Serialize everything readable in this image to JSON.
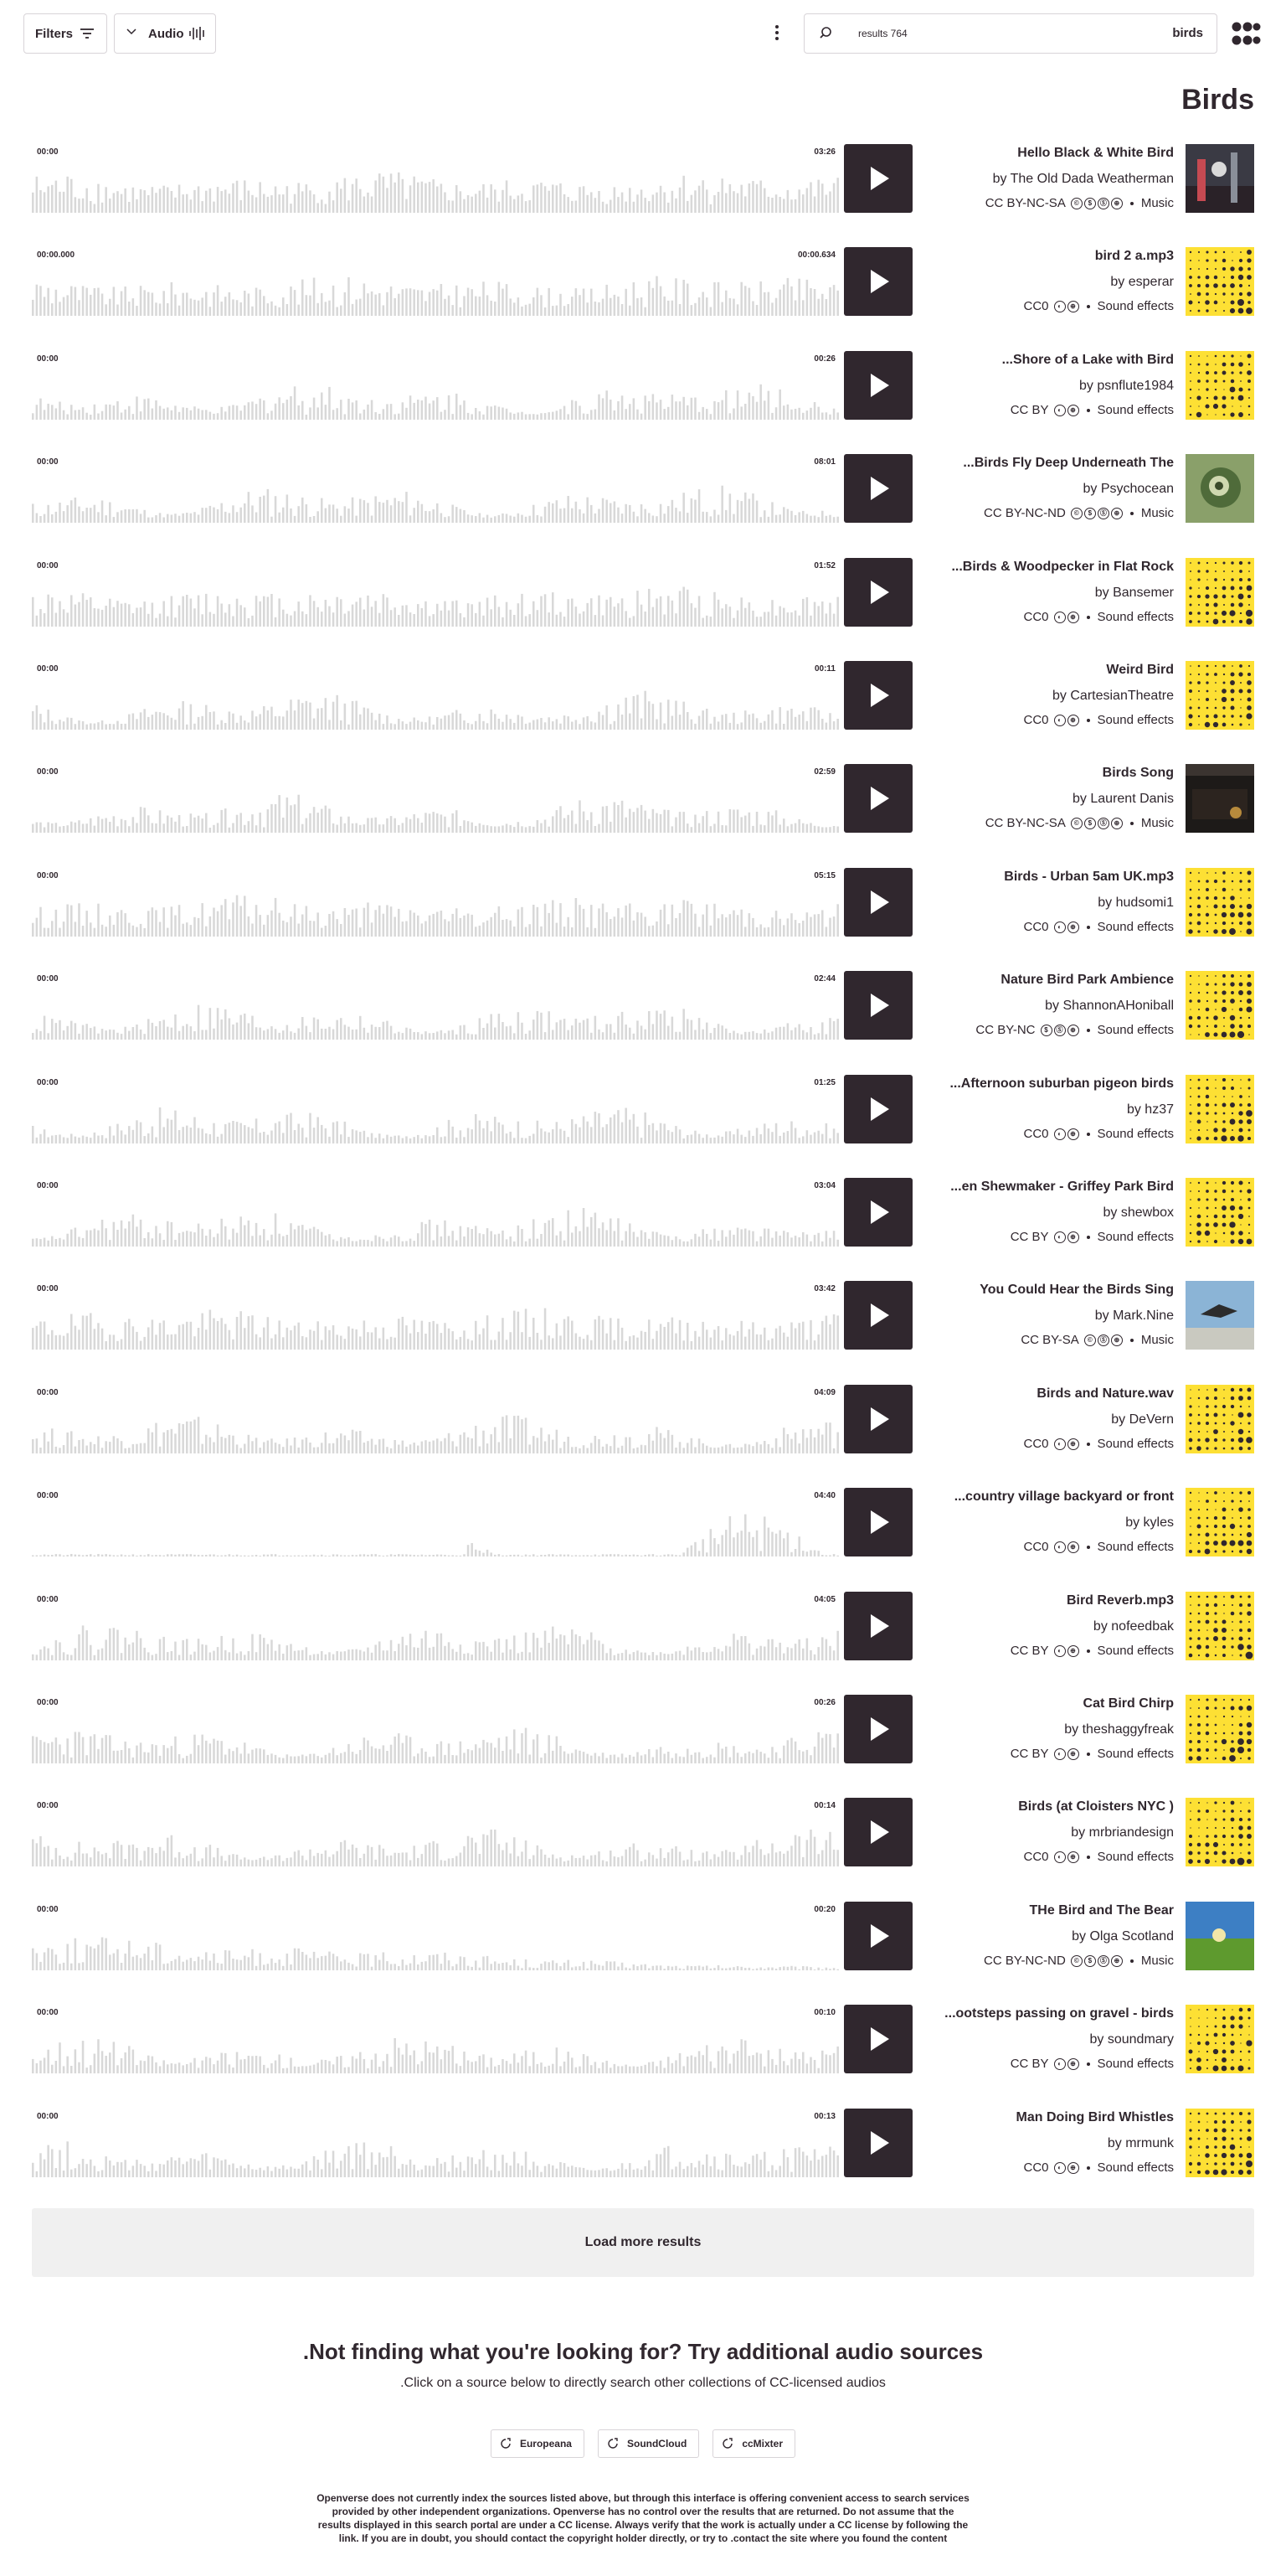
{
  "header": {
    "filters_label": "Filters",
    "media_type_label": "Audio",
    "search_count": "results 764",
    "search_query": "birds"
  },
  "page_title": "Birds",
  "results": [
    {
      "title": "Hello Black & White Bird",
      "creator": "by The Old Dada Weatherman",
      "license": "CC BY-NC-SA",
      "badges": [
        "©",
        "$",
        "Ⓢ",
        "⊕"
      ],
      "category": "Music",
      "start": "00:00",
      "end": "03:26",
      "thumb": "photo-dark-birds",
      "wave": "dense"
    },
    {
      "title": "bird 2 a.mp3",
      "creator": "by esperar",
      "license": "CC0",
      "badges": [
        "◐",
        "⊕"
      ],
      "category": "Sound effects",
      "start": "00:00.000",
      "end": "00:00.634",
      "thumb": "yellow-pattern",
      "wave": "dense"
    },
    {
      "title": "...Shore of a Lake with Bird",
      "creator": "by psnflute1984",
      "license": "CC BY",
      "badges": [
        "◐",
        "⊕"
      ],
      "category": "Sound effects",
      "start": "00:00",
      "end": "00:26",
      "thumb": "yellow-pattern",
      "wave": "medium"
    },
    {
      "title": "...Birds Fly Deep Underneath The",
      "creator": "by Psychocean",
      "license": "CC BY-NC-ND",
      "badges": [
        "©",
        "$",
        "Ⓢ",
        "⊕"
      ],
      "category": "Music",
      "start": "00:00",
      "end": "08:01",
      "thumb": "photo-green",
      "wave": "medium"
    },
    {
      "title": "...Birds & Woodpecker in Flat Rock",
      "creator": "by Bansemer",
      "license": "CC0",
      "badges": [
        "◐",
        "⊕"
      ],
      "category": "Sound effects",
      "start": "00:00",
      "end": "01:52",
      "thumb": "yellow-pattern",
      "wave": "dense"
    },
    {
      "title": "Weird Bird",
      "creator": "by CartesianTheatre",
      "license": "CC0",
      "badges": [
        "◐",
        "⊕"
      ],
      "category": "Sound effects",
      "start": "00:00",
      "end": "00:11",
      "thumb": "yellow-pattern",
      "wave": "medium"
    },
    {
      "title": "Birds Song",
      "creator": "by Laurent Danis",
      "license": "CC BY-NC-SA",
      "badges": [
        "©",
        "$",
        "Ⓢ",
        "⊕"
      ],
      "category": "Music",
      "start": "00:00",
      "end": "02:59",
      "thumb": "photo-dark-album",
      "wave": "medium"
    },
    {
      "title": "Birds - Urban 5am UK.mp3",
      "creator": "by hudsomi1",
      "license": "CC0",
      "badges": [
        "◐",
        "⊕"
      ],
      "category": "Sound effects",
      "start": "00:00",
      "end": "05:15",
      "thumb": "yellow-pattern",
      "wave": "dense"
    },
    {
      "title": "Nature Bird Park Ambience",
      "creator": "by ShannonAHoniball",
      "license": "CC BY-NC",
      "badges": [
        "$",
        "Ⓢ",
        "⊕"
      ],
      "category": "Sound effects",
      "start": "00:00",
      "end": "02:44",
      "thumb": "yellow-pattern",
      "wave": "medium"
    },
    {
      "title": "...Afternoon suburban pigeon birds",
      "creator": "by hz37",
      "license": "CC0",
      "badges": [
        "◐",
        "⊕"
      ],
      "category": "Sound effects",
      "start": "00:00",
      "end": "01:25",
      "thumb": "yellow-pattern",
      "wave": "medium"
    },
    {
      "title": "...en Shewmaker - Griffey Park Bird",
      "creator": "by shewbox",
      "license": "CC BY",
      "badges": [
        "◐",
        "⊕"
      ],
      "category": "Sound effects",
      "start": "00:00",
      "end": "03:04",
      "thumb": "yellow-pattern",
      "wave": "medium"
    },
    {
      "title": "You Could Hear the Birds Sing",
      "creator": "by Mark.Nine",
      "license": "CC BY-SA",
      "badges": [
        "©",
        "Ⓢ",
        "⊕"
      ],
      "category": "Music",
      "start": "00:00",
      "end": "03:42",
      "thumb": "photo-sky",
      "wave": "dense"
    },
    {
      "title": "Birds and Nature.wav",
      "creator": "by DeVern",
      "license": "CC0",
      "badges": [
        "◐",
        "⊕"
      ],
      "category": "Sound effects",
      "start": "00:00",
      "end": "04:09",
      "thumb": "yellow-pattern",
      "wave": "medium"
    },
    {
      "title": "...country village backyard or front",
      "creator": "by kyles",
      "license": "CC0",
      "badges": [
        "◐",
        "⊕"
      ],
      "category": "Sound effects",
      "start": "00:00",
      "end": "04:40",
      "thumb": "yellow-pattern",
      "wave": "sparse"
    },
    {
      "title": "Bird Reverb.mp3",
      "creator": "by nofeedbak",
      "license": "CC BY",
      "badges": [
        "◐",
        "⊕"
      ],
      "category": "Sound effects",
      "start": "00:00",
      "end": "04:05",
      "thumb": "yellow-pattern",
      "wave": "medium"
    },
    {
      "title": "Cat Bird Chirp",
      "creator": "by theshaggyfreak",
      "license": "CC BY",
      "badges": [
        "◐",
        "⊕"
      ],
      "category": "Sound effects",
      "start": "00:00",
      "end": "00:26",
      "thumb": "yellow-pattern",
      "wave": "medium"
    },
    {
      "title": "Birds (at Cloisters NYC )",
      "creator": "by mrbriandesign",
      "license": "CC0",
      "badges": [
        "◐",
        "⊕"
      ],
      "category": "Sound effects",
      "start": "00:00",
      "end": "00:14",
      "thumb": "yellow-pattern",
      "wave": "medium"
    },
    {
      "title": "THe Bird and The Bear",
      "creator": "by Olga Scotland",
      "license": "CC BY-NC-ND",
      "badges": [
        "©",
        "$",
        "Ⓢ",
        "⊕"
      ],
      "category": "Music",
      "start": "00:00",
      "end": "00:20",
      "thumb": "photo-field",
      "wave": "fading"
    },
    {
      "title": "...ootsteps passing on gravel - birds",
      "creator": "by soundmary",
      "license": "CC BY",
      "badges": [
        "◐",
        "⊕"
      ],
      "category": "Sound effects",
      "start": "00:00",
      "end": "00:10",
      "thumb": "yellow-pattern",
      "wave": "medium"
    },
    {
      "title": "Man Doing Bird Whistles",
      "creator": "by mrmunk",
      "license": "CC0",
      "badges": [
        "◐",
        "⊕"
      ],
      "category": "Sound effects",
      "start": "00:00",
      "end": "00:13",
      "thumb": "yellow-pattern",
      "wave": "medium"
    }
  ],
  "load_more_label": "Load more results",
  "sources": {
    "title": ".Not finding what you're looking for? Try additional audio sources",
    "subtitle": ".Click on a source below to directly search other collections of CC-licensed audios",
    "buttons": [
      "Europeana",
      "SoundCloud",
      "ccMixter"
    ],
    "disclaimer": "Openverse does not currently index the sources listed above, but through this interface is offering convenient access to search services provided by other independent organizations. Openverse has no control over the results that are returned. Do not assume that the results displayed in this search portal are under a CC license. Always verify that the work is actually under a CC license by following the link. If you are in doubt, you should contact the copyright holder directly, or try to .contact the site where you found the content"
  },
  "colors": {
    "text": "#30272e",
    "wave": "#d8d8d8",
    "play_bg": "#30272e",
    "thumb_yellow": "#fde034",
    "load_more_bg": "#f0f0f0"
  }
}
